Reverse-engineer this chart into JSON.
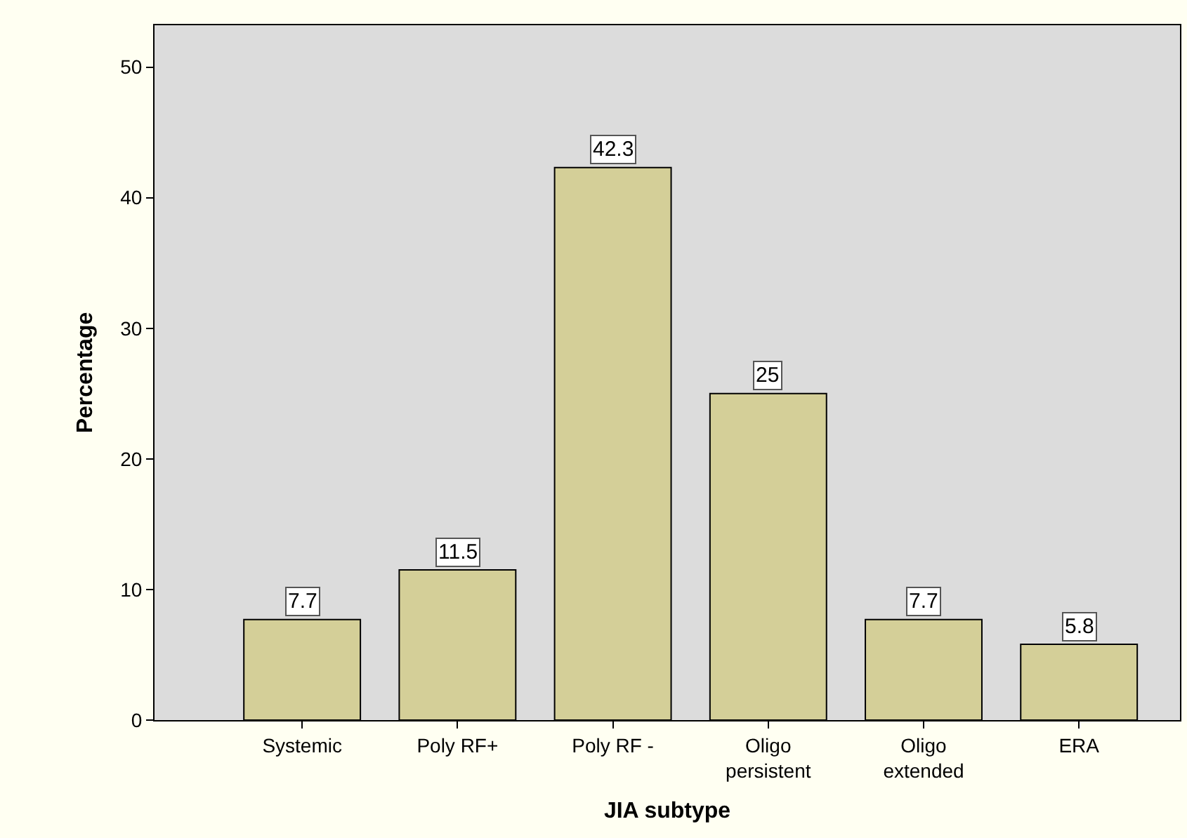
{
  "chart_data": {
    "type": "bar",
    "xlabel": "JIA subtype",
    "ylabel": "Percentage",
    "categories": [
      "Systemic",
      "Poly RF+",
      "Poly RF -",
      "Oligo\npersistent",
      "Oligo\nextended",
      "ERA"
    ],
    "values": [
      7.7,
      11.5,
      42.3,
      25,
      7.7,
      5.8
    ],
    "color": "#d4cf98",
    "ylim": [
      0,
      53.2
    ],
    "yticks": [
      0,
      10,
      20,
      30,
      40,
      50
    ],
    "grid": false,
    "legend": false,
    "data_labels": true
  }
}
